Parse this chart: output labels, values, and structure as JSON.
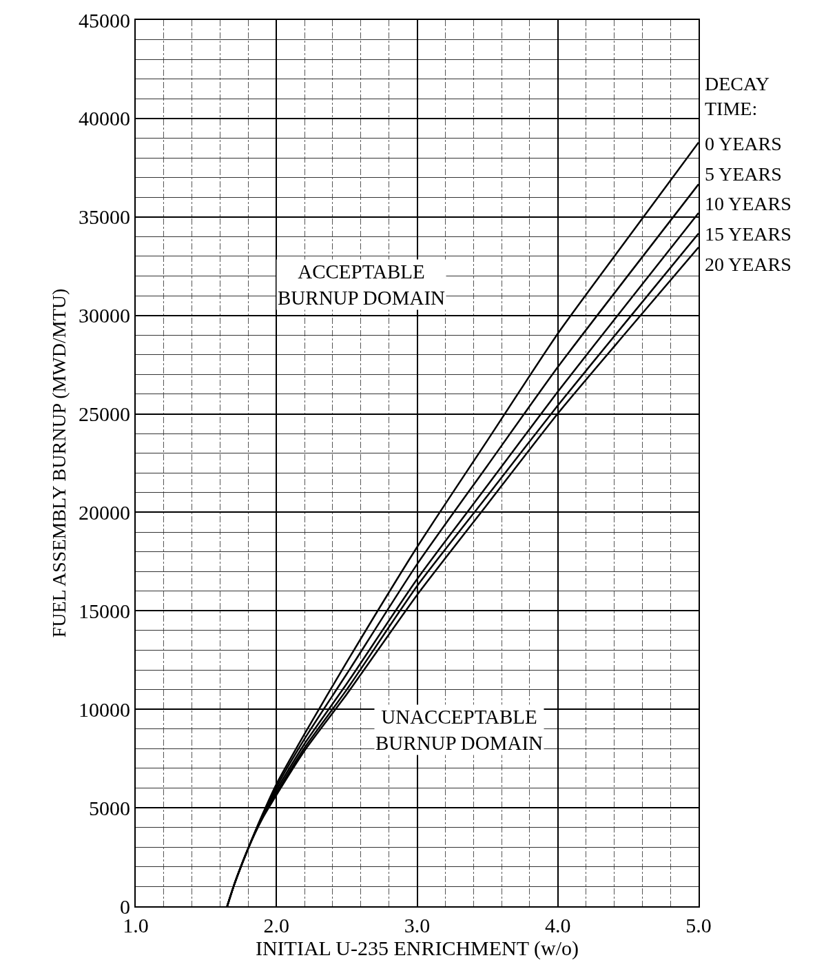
{
  "chart_data": {
    "type": "line",
    "xlabel": "INITIAL U-235 ENRICHMENT (w/o)",
    "ylabel": "FUEL ASSEMBLY BURNUP (MWD/MTU)",
    "legend_title": "DECAY\nTIME:",
    "x": [
      1.65,
      1.7,
      1.8,
      1.9,
      2.0,
      2.2,
      2.5,
      3.0,
      3.5,
      4.0,
      4.5,
      5.0
    ],
    "series": [
      {
        "name": "0 YEARS",
        "color": "#000000",
        "values": [
          0,
          1100,
          2950,
          4650,
          6200,
          8750,
          12400,
          18240,
          23660,
          29080,
          33950,
          38780
        ]
      },
      {
        "name": "5 YEARS",
        "color": "#000000",
        "values": [
          0,
          1100,
          2950,
          4600,
          6050,
          8500,
          11800,
          17370,
          22380,
          27380,
          32040,
          36660
        ]
      },
      {
        "name": "10 YEARS",
        "color": "#000000",
        "values": [
          0,
          1100,
          2950,
          4550,
          5900,
          8250,
          11300,
          16610,
          21370,
          26130,
          30680,
          35200
        ]
      },
      {
        "name": "15 YEARS",
        "color": "#000000",
        "values": [
          0,
          1100,
          2950,
          4500,
          5750,
          8050,
          11000,
          16260,
          20850,
          25430,
          29810,
          34160
        ]
      },
      {
        "name": "20 YEARS",
        "color": "#000000",
        "values": [
          0,
          1100,
          2950,
          4450,
          5650,
          7900,
          10770,
          15810,
          20420,
          25020,
          29260,
          33460
        ]
      }
    ],
    "xlim": [
      1.0,
      5.0
    ],
    "xticks": [
      {
        "value": 1.0,
        "label": "1.0"
      },
      {
        "value": 2.0,
        "label": "2.0"
      },
      {
        "value": 3.0,
        "label": "3.0"
      },
      {
        "value": 4.0,
        "label": "4.0"
      },
      {
        "value": 5.0,
        "label": "5.0"
      }
    ],
    "ylim": [
      0,
      45000
    ],
    "yticks": [
      0,
      5000,
      10000,
      15000,
      20000,
      25000,
      30000,
      35000,
      40000,
      45000
    ],
    "annotations": [
      "ACCEPTABLE\nBURNUP DOMAIN",
      "UNACCEPTABLE\nBURNUP DOMAIN"
    ],
    "grid": true,
    "legend": false,
    "marker": "none",
    "line_style": "solid"
  }
}
